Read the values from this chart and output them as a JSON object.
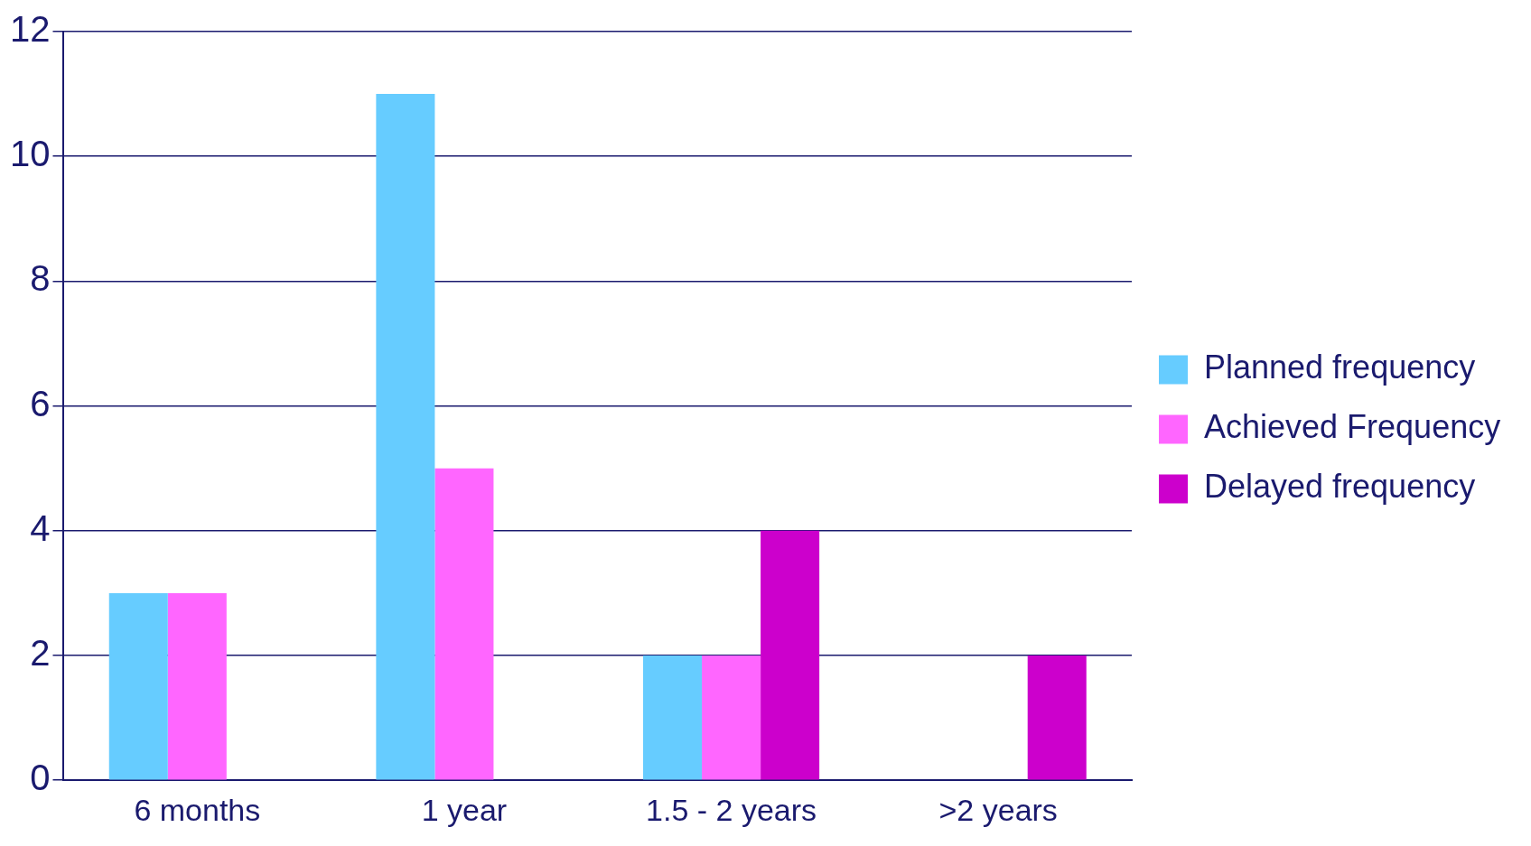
{
  "chart_data": {
    "type": "bar",
    "categories": [
      "6 months",
      "1 year",
      "1.5 - 2 years",
      ">2 years"
    ],
    "series": [
      {
        "name": "Planned frequency",
        "color": "#66ccff",
        "values": [
          3,
          11,
          2,
          0
        ]
      },
      {
        "name": "Achieved Frequency",
        "color": "#ff66ff",
        "values": [
          3,
          5,
          2,
          0
        ]
      },
      {
        "name": "Delayed frequency",
        "color": "#cc00cc",
        "values": [
          0,
          0,
          4,
          2
        ]
      }
    ],
    "ylim": [
      0,
      12
    ],
    "yticks": [
      0,
      2,
      4,
      6,
      8,
      10,
      12
    ],
    "grid": "y",
    "legend": "right"
  }
}
